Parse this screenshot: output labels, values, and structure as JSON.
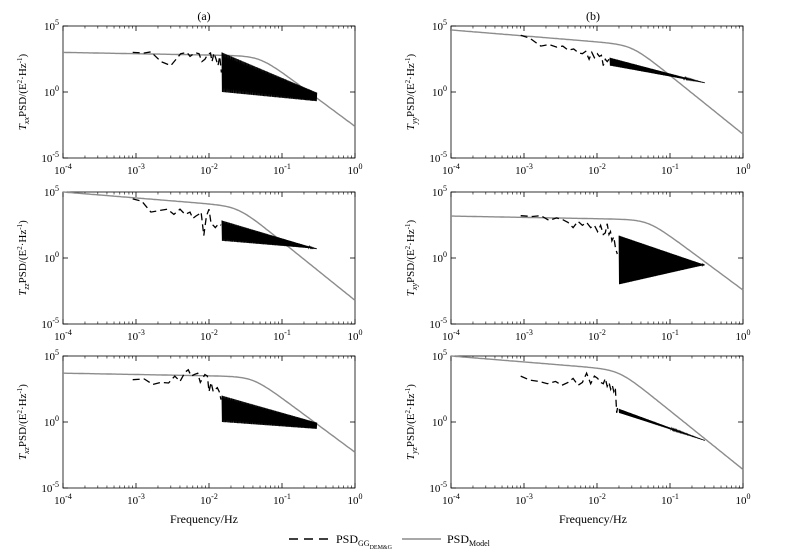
{
  "figure": {
    "column_labels": [
      "(a)",
      "(b)"
    ],
    "xlabel": "Frequency/Hz",
    "legend": [
      {
        "base": "PSD",
        "sub": "GG",
        "sub2": "DEM&G",
        "style": "dashed",
        "color": "#000000"
      },
      {
        "base": "PSD",
        "sub": "Model",
        "sub2": "",
        "style": "solid",
        "color": "#8c8c8c"
      }
    ],
    "x_ticks": [
      "10-4",
      "10-3",
      "10-2",
      "10-1",
      "100"
    ],
    "y_ticks": [
      "10-5",
      "100",
      "105"
    ]
  },
  "chart_data": [
    {
      "type": "line",
      "panel": "Txx",
      "ylabel_component": "xx",
      "xscale": "log",
      "yscale": "log",
      "xlim": [
        0.0001,
        1
      ],
      "ylim": [
        1e-05,
        100000
      ],
      "grid": false,
      "series": [
        {
          "name": "PSD_GG_DEM&G",
          "style": "dashed",
          "x": [
            0.0009,
            0.0013,
            0.0016,
            0.0022,
            0.003,
            0.0041,
            0.005,
            0.0055,
            0.006,
            0.0067,
            0.0073,
            0.008,
            0.0088,
            0.0096,
            0.0105,
            0.011,
            0.0117,
            0.0125,
            0.0133,
            0.014,
            0.0148
          ],
          "y": [
            1000,
            900,
            1100,
            200,
            100,
            800,
            1000,
            500,
            700,
            900,
            800,
            200,
            300,
            700,
            900,
            200,
            900,
            300,
            100,
            500,
            30
          ],
          "band_start": 0.015,
          "band_end": 0.3,
          "band_start_range": [
            1,
            1000
          ],
          "band_end_range": [
            0.2,
            0.9
          ]
        },
        {
          "name": "PSD_Model",
          "style": "solid",
          "x0": 0.0001,
          "level": 1000,
          "slope": 0.1,
          "fc": 0.05,
          "order": 4
        }
      ]
    },
    {
      "type": "line",
      "panel": "Tyy",
      "ylabel_component": "yy",
      "xscale": "log",
      "yscale": "log",
      "xlim": [
        0.0001,
        1
      ],
      "ylim": [
        1e-05,
        100000
      ],
      "grid": false,
      "series": [
        {
          "name": "PSD_GG_DEM&G",
          "style": "dashed",
          "x": [
            0.0009,
            0.0012,
            0.0017,
            0.0022,
            0.0028,
            0.0034,
            0.004,
            0.0048,
            0.0056,
            0.0063,
            0.007,
            0.0078,
            0.0085,
            0.0092,
            0.0101,
            0.0108,
            0.0115,
            0.0122,
            0.013,
            0.0138,
            0.0146
          ],
          "y": [
            20000,
            12000,
            3000,
            4000,
            2500,
            3000,
            1500,
            1800,
            900,
            800,
            1200,
            300,
            1000,
            400,
            800,
            500,
            600,
            100,
            300,
            200,
            300
          ],
          "band_start": 0.015,
          "band_end": 0.3,
          "band_start_range": [
            100,
            400
          ],
          "band_end_range": [
            5,
            5
          ]
        },
        {
          "name": "PSD_Model",
          "style": "solid",
          "x0": 0.0001,
          "level": 50000,
          "slope": 0.45,
          "fc": 0.03,
          "order": 4
        }
      ]
    },
    {
      "type": "line",
      "panel": "Tzz",
      "ylabel_component": "zz",
      "xscale": "log",
      "yscale": "log",
      "xlim": [
        0.0001,
        1
      ],
      "ylim": [
        1e-05,
        100000
      ],
      "grid": false,
      "series": [
        {
          "name": "PSD_GG_DEM&G",
          "style": "dashed",
          "x": [
            0.0009,
            0.0012,
            0.0016,
            0.0021,
            0.0027,
            0.0033,
            0.004,
            0.0047,
            0.0055,
            0.006,
            0.0066,
            0.0072,
            0.0078,
            0.0085,
            0.0092,
            0.01,
            0.0107,
            0.0114,
            0.0122,
            0.013,
            0.0138,
            0.0146
          ],
          "y": [
            30000,
            20000,
            3000,
            4000,
            5000,
            2000,
            5000,
            2000,
            3000,
            1000,
            1500,
            2000,
            3000,
            50,
            1500,
            5000,
            400,
            300,
            200,
            300,
            400,
            300
          ],
          "band_start": 0.015,
          "band_end": 0.3,
          "band_start_range": [
            20,
            700
          ],
          "band_end_range": [
            5,
            5
          ]
        },
        {
          "name": "PSD_Model",
          "style": "solid",
          "x0": 0.0001,
          "level": 100000,
          "slope": 0.45,
          "fc": 0.025,
          "order": 4
        }
      ]
    },
    {
      "type": "line",
      "panel": "Txy",
      "ylabel_component": "xy",
      "xscale": "log",
      "yscale": "log",
      "xlim": [
        0.0001,
        1
      ],
      "ylim": [
        1e-05,
        100000
      ],
      "grid": false,
      "series": [
        {
          "name": "PSD_GG_DEM&G",
          "style": "dashed",
          "x": [
            0.0009,
            0.0013,
            0.0017,
            0.0022,
            0.0028,
            0.0034,
            0.004,
            0.0047,
            0.0055,
            0.0063,
            0.0072,
            0.0082,
            0.0092,
            0.0102,
            0.0112,
            0.0122,
            0.013,
            0.0138,
            0.0146,
            0.0153,
            0.016,
            0.017,
            0.018,
            0.019
          ],
          "y": [
            1600,
            1400,
            1600,
            700,
            1100,
            800,
            500,
            200,
            600,
            300,
            500,
            200,
            300,
            100,
            300,
            60,
            80,
            400,
            60,
            100,
            20,
            40,
            5,
            2
          ],
          "band_start": 0.02,
          "band_end": 0.3,
          "band_start_range": [
            0.01,
            50
          ],
          "band_end_range": [
            0.3,
            0.3
          ]
        },
        {
          "name": "PSD_Model",
          "style": "solid",
          "x0": 0.0001,
          "level": 1500,
          "slope": 0.1,
          "fc": 0.05,
          "order": 4
        }
      ]
    },
    {
      "type": "line",
      "panel": "Txz",
      "ylabel_component": "xz",
      "xscale": "log",
      "yscale": "log",
      "xlim": [
        0.0001,
        1
      ],
      "ylim": [
        1e-05,
        100000
      ],
      "grid": false,
      "series": [
        {
          "name": "PSD_GG_DEM&G",
          "style": "dashed",
          "x": [
            0.0009,
            0.0013,
            0.0017,
            0.0022,
            0.0028,
            0.0034,
            0.004,
            0.0047,
            0.0052,
            0.0057,
            0.0063,
            0.007,
            0.0076,
            0.0082,
            0.0088,
            0.0095,
            0.01,
            0.0107,
            0.0114,
            0.0122,
            0.013,
            0.0138,
            0.0146
          ],
          "y": [
            1600,
            1800,
            700,
            1000,
            900,
            3000,
            1200,
            6000,
            9000,
            3000,
            4000,
            5000,
            1000,
            2000,
            4000,
            3000,
            200,
            1000,
            200,
            300,
            400,
            200,
            50
          ],
          "band_start": 0.015,
          "band_end": 0.3,
          "band_start_range": [
            1,
            100
          ],
          "band_end_range": [
            0.3,
            0.9
          ]
        },
        {
          "name": "PSD_Model",
          "style": "solid",
          "x0": 0.0001,
          "level": 5000,
          "slope": 0.1,
          "fc": 0.04,
          "order": 4
        }
      ]
    },
    {
      "type": "line",
      "panel": "Tyz",
      "ylabel_component": "yz",
      "xscale": "log",
      "yscale": "log",
      "xlim": [
        0.0001,
        1
      ],
      "ylim": [
        1e-05,
        100000
      ],
      "grid": false,
      "series": [
        {
          "name": "PSD_GG_DEM&G",
          "style": "dashed",
          "x": [
            0.0009,
            0.0012,
            0.0016,
            0.0021,
            0.0027,
            0.0033,
            0.004,
            0.0047,
            0.0055,
            0.0063,
            0.0072,
            0.0082,
            0.0092,
            0.0102,
            0.0112,
            0.0122,
            0.013,
            0.0138,
            0.0146,
            0.0154,
            0.0162,
            0.017,
            0.0178,
            0.0186,
            0.0194
          ],
          "y": [
            3000,
            1500,
            1200,
            800,
            1200,
            600,
            1000,
            2000,
            600,
            1000,
            5000,
            800,
            3000,
            2000,
            1000,
            800,
            2000,
            500,
            1000,
            300,
            600,
            200,
            400,
            5,
            20
          ],
          "band_start": 0.02,
          "band_end": 0.3,
          "band_start_range": [
            5,
            10
          ],
          "band_end_range": [
            0.04,
            0.04
          ]
        },
        {
          "name": "PSD_Model",
          "style": "solid",
          "x0": 0.0001,
          "level": 100000,
          "slope": 0.45,
          "fc": 0.02,
          "order": 4
        }
      ]
    }
  ]
}
